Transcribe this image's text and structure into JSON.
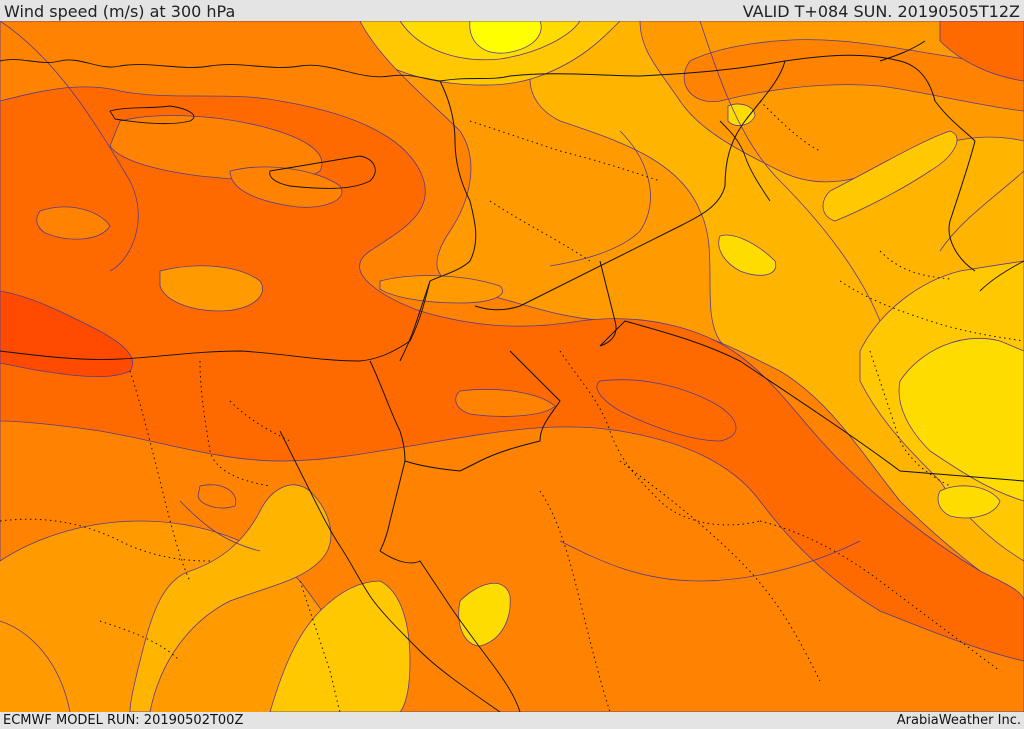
{
  "header": {
    "title": "Wind speed (m/s) at 300 hPa",
    "valid": "VALID T+084 SUN. 20190505T12Z"
  },
  "footer": {
    "model_run": "ECMWF MODEL RUN: 20190502T00Z",
    "credit": "ArabiaWeather Inc."
  },
  "map": {
    "field": "wind-speed-300hPa",
    "palette": {
      "very_high": "#ff4a00",
      "high": "#ff6a00",
      "mid_high": "#ff8200",
      "mid": "#ff9a00",
      "mid_low": "#ffb400",
      "low": "#ffc800",
      "lower": "#ffdc00",
      "lowest": "#ffff00"
    },
    "contour_color": "#5a3a8c",
    "border_color": "#111111"
  }
}
